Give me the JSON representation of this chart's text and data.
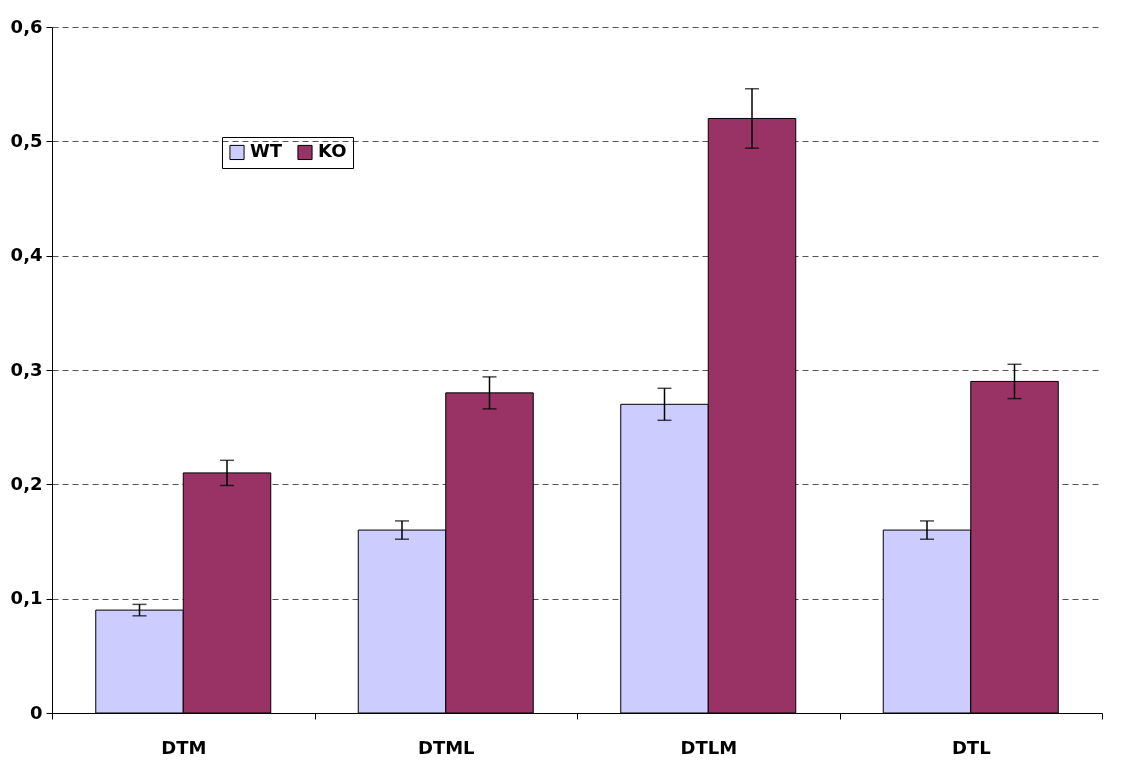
{
  "chart_data": {
    "type": "bar",
    "categories": [
      "DTM",
      "DTML",
      "DTLM",
      "DTL"
    ],
    "series": [
      {
        "name": "WT",
        "color": "#ccccff",
        "values": [
          0.09,
          0.16,
          0.27,
          0.16
        ],
        "errors": [
          0.005,
          0.008,
          0.014,
          0.008
        ]
      },
      {
        "name": "KO",
        "color": "#993366",
        "values": [
          0.21,
          0.28,
          0.52,
          0.29
        ],
        "errors": [
          0.011,
          0.014,
          0.026,
          0.015
        ]
      }
    ],
    "ylim": [
      0,
      0.6
    ],
    "yticks": [
      0,
      {
        "value": 0.1,
        "label": "0,1"
      },
      {
        "value": 0.2,
        "label": "0,2"
      },
      {
        "value": 0.3,
        "label": "0,3"
      },
      {
        "value": 0.4,
        "label": "0,4"
      },
      {
        "value": 0.5,
        "label": "0,5"
      },
      {
        "value": 0.6,
        "label": "0,6"
      }
    ],
    "grid": "y",
    "legend": "top left"
  }
}
